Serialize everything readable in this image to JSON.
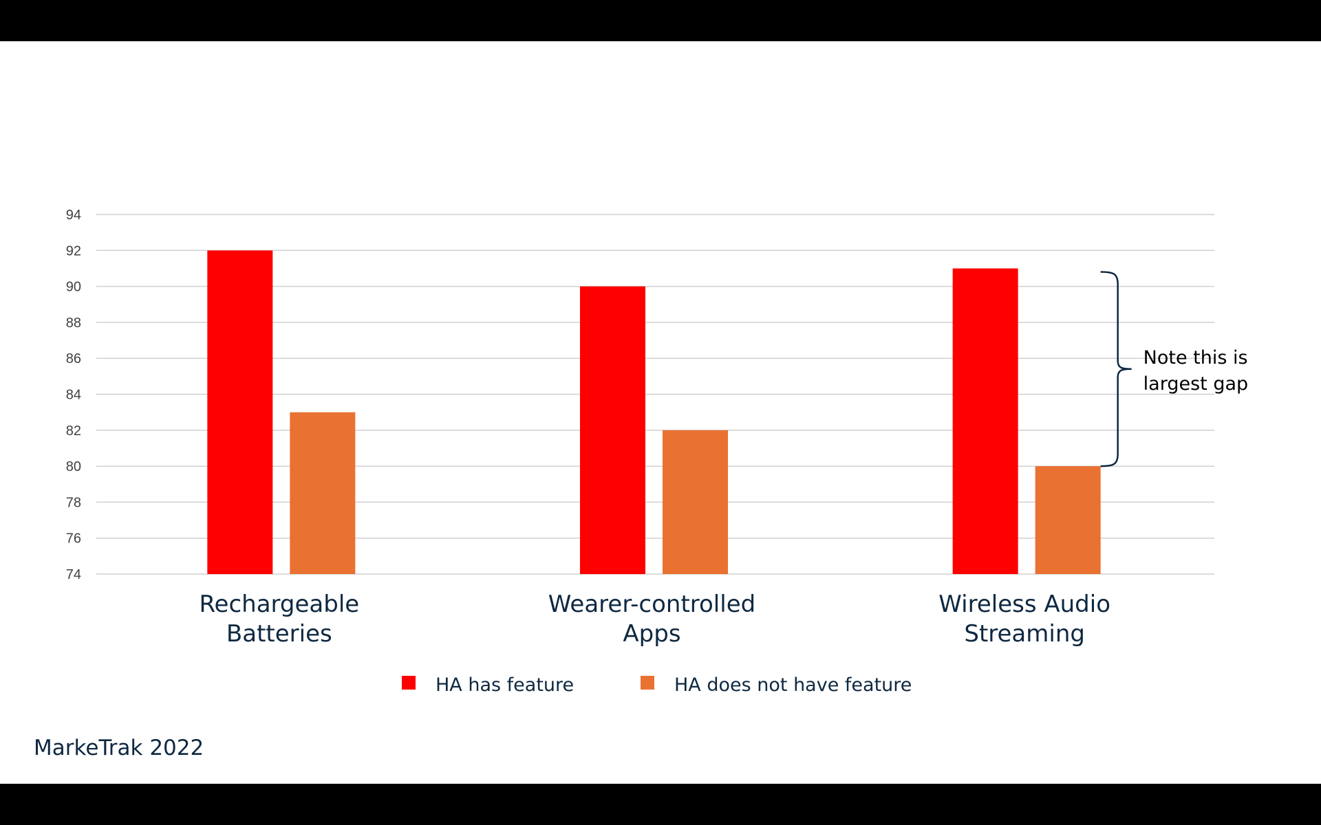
{
  "source_note": "MarkeTrak 2022",
  "annotation": {
    "text_lines": [
      "Note this is",
      "largest gap"
    ]
  },
  "colors": {
    "series_has": "#ff0000",
    "series_not": "#e97132",
    "grid": "#d0d0d0",
    "text": "#0e2841",
    "brace": "#0e2841"
  },
  "chart_data": {
    "type": "bar",
    "categories": [
      [
        "Rechargeable",
        "Batteries"
      ],
      [
        "Wearer-controlled",
        "Apps"
      ],
      [
        "Wireless Audio",
        "Streaming"
      ]
    ],
    "series": [
      {
        "name": "HA has feature",
        "values": [
          92,
          90,
          91
        ]
      },
      {
        "name": "HA does not have feature",
        "values": [
          83,
          82,
          80
        ]
      }
    ],
    "ylim": [
      74,
      94
    ],
    "yticks": [
      74,
      76,
      78,
      80,
      82,
      84,
      86,
      88,
      90,
      92,
      94
    ],
    "grid": true,
    "legend": "bottom",
    "title": "",
    "xlabel": "",
    "ylabel": ""
  }
}
